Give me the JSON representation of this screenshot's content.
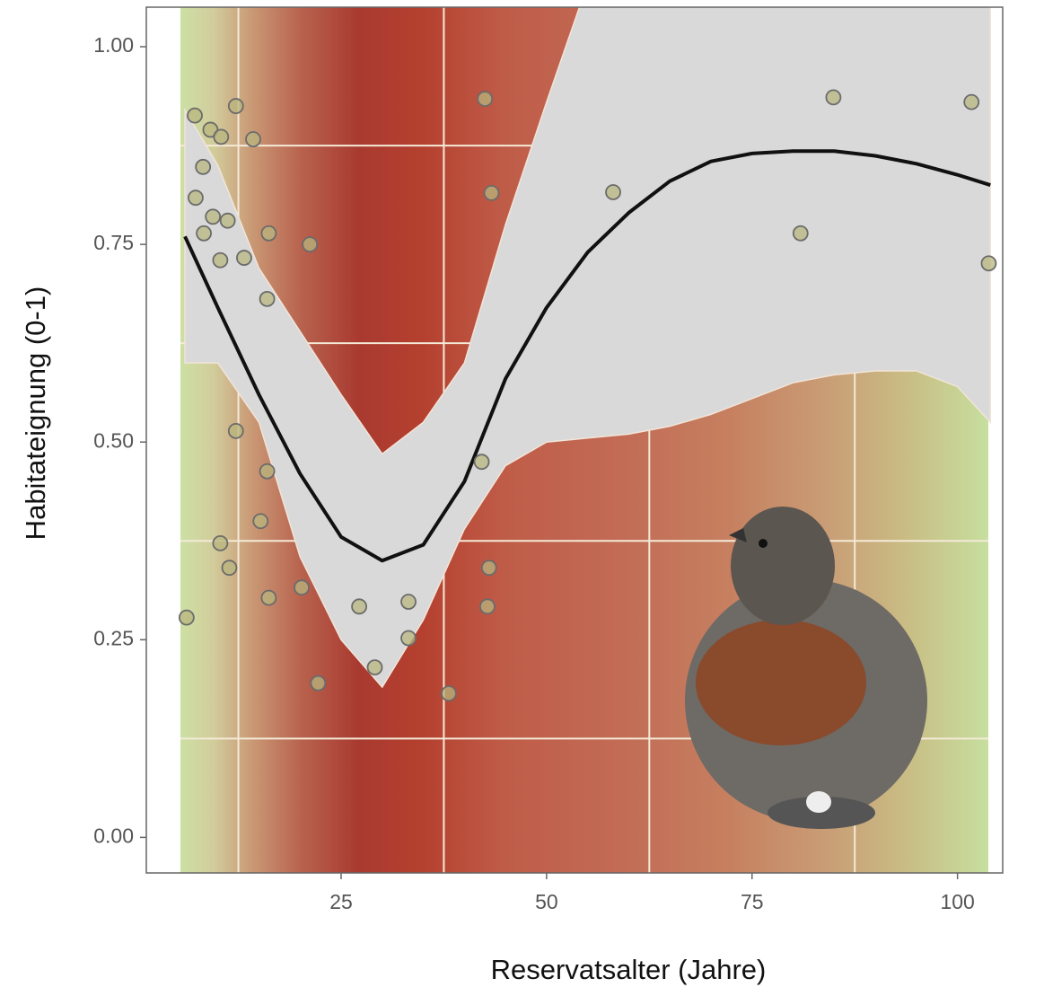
{
  "chart_data": {
    "type": "scatter",
    "x_label": "Reservatsalter (Jahre)",
    "y_label": "Habitateignung (0-1)",
    "xlim": [
      1.3,
      105.5
    ],
    "ylim": [
      -0.045,
      1.05
    ],
    "xticks": [
      25,
      50,
      75,
      100
    ],
    "yticks": [
      {
        "value": 0,
        "label": "0.00"
      },
      0.25,
      {
        "value": 0.5,
        "label": "0.50"
      },
      0.75,
      {
        "value": 1,
        "label": "1.00"
      }
    ],
    "x_minor_grid": [
      12.5,
      37.5,
      62.5,
      87.5
    ],
    "y_minor_grid": [
      0.125,
      0.375,
      0.625,
      0.875
    ],
    "ribbon": {
      "color": "#d9d9d9",
      "x": [
        6,
        10,
        15,
        20,
        25,
        30,
        35,
        40,
        45,
        50,
        55,
        60,
        65,
        70,
        75,
        80,
        85,
        90,
        95,
        100,
        104
      ],
      "lower": [
        0.6,
        0.6,
        0.525,
        0.355,
        0.25,
        0.19,
        0.275,
        0.39,
        0.47,
        0.5,
        0.505,
        0.51,
        0.52,
        0.535,
        0.555,
        0.575,
        0.585,
        0.59,
        0.59,
        0.57,
        0.525
      ],
      "upper": [
        0.92,
        0.85,
        0.72,
        0.64,
        0.56,
        0.485,
        0.525,
        0.6,
        0.775,
        0.93,
        1.08,
        1.15,
        1.15,
        1.15,
        1.15,
        1.15,
        1.15,
        1.15,
        1.15,
        1.15,
        1.15
      ]
    },
    "smooth": {
      "color": "#111111",
      "x": [
        6,
        10,
        15,
        20,
        25,
        30,
        35,
        40,
        45,
        50,
        55,
        60,
        65,
        70,
        75,
        80,
        85,
        90,
        95,
        100,
        104
      ],
      "y": [
        0.76,
        0.67,
        0.56,
        0.46,
        0.38,
        0.35,
        0.37,
        0.45,
        0.58,
        0.67,
        0.74,
        0.79,
        0.83,
        0.855,
        0.865,
        0.868,
        0.868,
        0.862,
        0.852,
        0.838,
        0.825
      ]
    },
    "points": {
      "color": "#b8b67e",
      "x": [
        6.2,
        7.2,
        9.1,
        10.4,
        12.2,
        14.3,
        8.2,
        7.3,
        9.4,
        11.2,
        8.3,
        10.3,
        13.2,
        16.2,
        21.2,
        16.0,
        12.2,
        16.0,
        15.2,
        10.3,
        11.4,
        16.2,
        20.2,
        27.2,
        33.2,
        33.2,
        29.1,
        22.2,
        38.1,
        42.1,
        43.0,
        42.8,
        42.5,
        43.3,
        58.1,
        80.9,
        84.9,
        101.7,
        103.8
      ],
      "y": [
        0.278,
        0.913,
        0.895,
        0.886,
        0.925,
        0.883,
        0.848,
        0.809,
        0.785,
        0.78,
        0.764,
        0.73,
        0.733,
        0.764,
        0.75,
        0.681,
        0.514,
        0.463,
        0.4,
        0.372,
        0.341,
        0.303,
        0.316,
        0.292,
        0.298,
        0.252,
        0.215,
        0.195,
        0.182,
        0.475,
        0.341,
        0.292,
        0.934,
        0.815,
        0.816,
        0.764,
        0.936,
        0.93,
        0.726
      ]
    }
  }
}
